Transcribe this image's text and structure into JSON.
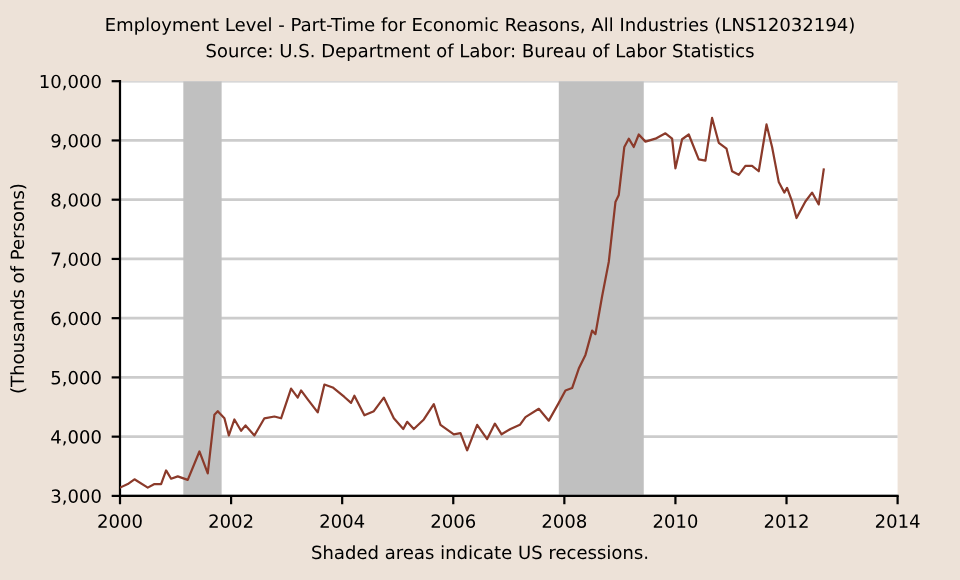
{
  "chart_data": {
    "type": "line",
    "title": "Employment Level - Part-Time for Economic Reasons, All Industries (LNS12032194)",
    "subtitle": "Source: U.S. Department of Labor: Bureau of Labor Statistics",
    "ylabel": "(Thousands of Persons)",
    "annotations": [
      "Shaded areas indicate US recessions."
    ],
    "series": [
      {
        "color": "#8b3a2a",
        "x": [
          2000.0,
          2000.14,
          2000.26,
          2000.5,
          2000.62,
          2000.74,
          2000.83,
          2000.92,
          2001.04,
          2001.22,
          2001.43,
          2001.58,
          2001.7,
          2001.76,
          2001.88,
          2001.96,
          2002.06,
          2002.18,
          2002.26,
          2002.42,
          2002.6,
          2002.78,
          2002.9,
          2003.08,
          2003.2,
          2003.26,
          2003.38,
          2003.56,
          2003.68,
          2003.83,
          2004.04,
          2004.16,
          2004.22,
          2004.4,
          2004.57,
          2004.75,
          2004.93,
          2005.1,
          2005.17,
          2005.29,
          2005.47,
          2005.65,
          2005.77,
          2006.01,
          2006.13,
          2006.25,
          2006.43,
          2006.61,
          2006.75,
          2006.87,
          2007.03,
          2007.2,
          2007.3,
          2007.54,
          2007.72,
          2007.9,
          2008.02,
          2008.14,
          2008.26,
          2008.38,
          2008.5,
          2008.56,
          2008.68,
          2008.8,
          2008.92,
          2008.98,
          2009.08,
          2009.16,
          2009.25,
          2009.34,
          2009.46,
          2009.64,
          2009.82,
          2009.94,
          2010.0,
          2010.12,
          2010.24,
          2010.42,
          2010.54,
          2010.66,
          2010.78,
          2010.92,
          2011.02,
          2011.14,
          2011.26,
          2011.38,
          2011.5,
          2011.64,
          2011.74,
          2011.86,
          2011.96,
          2012.01,
          2012.1,
          2012.18,
          2012.34,
          2012.46,
          2012.58,
          2012.67
        ],
        "values": [
          3140,
          3200,
          3280,
          3140,
          3200,
          3200,
          3430,
          3290,
          3330,
          3270,
          3750,
          3380,
          4370,
          4430,
          4310,
          4020,
          4290,
          4100,
          4190,
          4020,
          4310,
          4340,
          4310,
          4810,
          4660,
          4780,
          4630,
          4410,
          4880,
          4830,
          4670,
          4570,
          4690,
          4360,
          4430,
          4660,
          4310,
          4130,
          4250,
          4130,
          4290,
          4550,
          4200,
          4040,
          4060,
          3770,
          4200,
          3960,
          4220,
          4040,
          4130,
          4200,
          4330,
          4470,
          4270,
          4570,
          4780,
          4820,
          5150,
          5380,
          5790,
          5730,
          6370,
          6950,
          7960,
          8080,
          8890,
          9030,
          8890,
          9100,
          8980,
          9030,
          9120,
          9030,
          8530,
          9020,
          9100,
          8680,
          8660,
          9380,
          8960,
          8860,
          8480,
          8420,
          8570,
          8570,
          8480,
          9270,
          8890,
          8300,
          8120,
          8200,
          7970,
          7690,
          7970,
          8120,
          7920,
          8510
        ]
      }
    ],
    "xlim": [
      2000,
      2014
    ],
    "xticks": [
      2000,
      2002,
      2004,
      2006,
      2008,
      2010,
      2012,
      2014
    ],
    "ylim": [
      3000,
      10000
    ],
    "yticks": [
      {
        "value": 3000,
        "label": "3,000"
      },
      {
        "value": 4000,
        "label": "4,000"
      },
      {
        "value": 5000,
        "label": "5,000"
      },
      {
        "value": 6000,
        "label": "6,000"
      },
      {
        "value": 7000,
        "label": "7,000"
      },
      {
        "value": 8000,
        "label": "8,000"
      },
      {
        "value": 9000,
        "label": "9,000"
      },
      {
        "value": 10000,
        "label": "10,000"
      }
    ],
    "bands": [
      {
        "axis": "x",
        "from": 2001.14,
        "to": 2001.83,
        "color": "#c0c0c0"
      },
      {
        "axis": "x",
        "from": 2007.9,
        "to": 2009.43,
        "color": "#c0c0c0"
      }
    ],
    "grid": "y",
    "marker": "none",
    "line_style": "solid"
  }
}
